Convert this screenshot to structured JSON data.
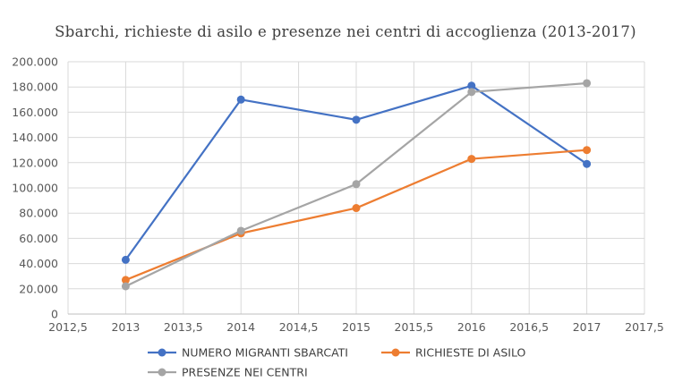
{
  "chart_data": {
    "type": "scatter",
    "title": "Sbarchi, richieste di asilo e presenze nei centri di accoglienza (2013-2017)",
    "xlabel": "",
    "ylabel": "",
    "xlim": [
      2012.5,
      2017.5
    ],
    "ylim": [
      0,
      200000
    ],
    "x_ticks": [
      2012.5,
      2013,
      2013.5,
      2014,
      2014.5,
      2015,
      2015.5,
      2016,
      2016.5,
      2017,
      2017.5
    ],
    "x_tick_labels": [
      "2012,5",
      "2013",
      "2013,5",
      "2014",
      "2014,5",
      "2015",
      "2015,5",
      "2016",
      "2016,5",
      "2017",
      "2017,5"
    ],
    "y_ticks": [
      0,
      20000,
      40000,
      60000,
      80000,
      100000,
      120000,
      140000,
      160000,
      180000,
      200000
    ],
    "y_tick_labels": [
      "0",
      "20.000",
      "40.000",
      "60.000",
      "80.000",
      "100.000",
      "120.000",
      "140.000",
      "160.000",
      "180.000",
      "200.000"
    ],
    "grid": true,
    "legend_position": "bottom",
    "x": [
      2013,
      2014,
      2015,
      2016,
      2017
    ],
    "series": [
      {
        "name": "NUMERO MIGRANTI SBARCATI",
        "color": "#4472c4",
        "values": [
          43000,
          170000,
          154000,
          181000,
          119000
        ]
      },
      {
        "name": "RICHIESTE DI ASILO",
        "color": "#ed7d31",
        "values": [
          27000,
          64000,
          84000,
          123000,
          130000
        ]
      },
      {
        "name": "PRESENZE NEI CENTRI",
        "color": "#a5a5a5",
        "values": [
          22000,
          66000,
          103000,
          176000,
          183000
        ]
      }
    ]
  }
}
